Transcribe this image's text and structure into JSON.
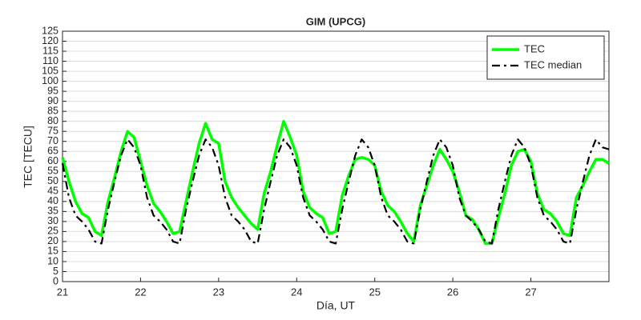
{
  "chart_data": {
    "type": "line",
    "title": "GIM (UPCG)",
    "xlabel": "Día, UT",
    "ylabel": "TEC [TECU]",
    "x": [
      21,
      21.083,
      21.167,
      21.25,
      21.333,
      21.417,
      21.5,
      21.583,
      21.667,
      21.75,
      21.833,
      21.917,
      22,
      22.083,
      22.167,
      22.25,
      22.333,
      22.417,
      22.5,
      22.583,
      22.667,
      22.75,
      22.833,
      22.917,
      23,
      23.083,
      23.167,
      23.25,
      23.333,
      23.417,
      23.5,
      23.583,
      23.667,
      23.75,
      23.833,
      23.917,
      24,
      24.083,
      24.167,
      24.25,
      24.333,
      24.417,
      24.5,
      24.583,
      24.667,
      24.75,
      24.833,
      24.917,
      25,
      25.083,
      25.167,
      25.25,
      25.333,
      25.417,
      25.5,
      25.583,
      25.667,
      25.75,
      25.833,
      25.917,
      26,
      26.083,
      26.167,
      26.25,
      26.333,
      26.417,
      26.5,
      26.583,
      26.667,
      26.75,
      26.833,
      26.917,
      27,
      27.083,
      27.167,
      27.25,
      27.333,
      27.417,
      27.5,
      27.583,
      27.667,
      27.75,
      27.833,
      27.917,
      28
    ],
    "series": [
      {
        "name": "TEC",
        "color": "#00ff00",
        "dash": "solid",
        "values": [
          62,
          50,
          40,
          34,
          32,
          25,
          23,
          40,
          52,
          65,
          75,
          72,
          60,
          48,
          39,
          35,
          30,
          24,
          25,
          40,
          55,
          69,
          79,
          71,
          69,
          50,
          42,
          37,
          33,
          29,
          26,
          44,
          55,
          68,
          80,
          72,
          63,
          45,
          37,
          34,
          32,
          24,
          25,
          43,
          53,
          61,
          62,
          61,
          58,
          45,
          38,
          35,
          30,
          24,
          20,
          38,
          48,
          58,
          66,
          61,
          55,
          45,
          33,
          31,
          26,
          19,
          19,
          32,
          44,
          58,
          65,
          66,
          60,
          44,
          36,
          34,
          30,
          24,
          23,
          42,
          48,
          55,
          61,
          61,
          59
        ]
      },
      {
        "name": "TEC median",
        "color": "#000000",
        "dash": "dashdot",
        "values": [
          59,
          42,
          33,
          30,
          26,
          20,
          19,
          36,
          50,
          63,
          71,
          67,
          58,
          42,
          33,
          30,
          26,
          20,
          19,
          36,
          50,
          63,
          71,
          67,
          58,
          42,
          33,
          30,
          26,
          20,
          19,
          36,
          50,
          63,
          71,
          67,
          58,
          42,
          33,
          30,
          26,
          20,
          19,
          36,
          50,
          63,
          71,
          67,
          58,
          42,
          33,
          30,
          26,
          20,
          19,
          36,
          50,
          63,
          71,
          67,
          58,
          42,
          33,
          30,
          26,
          20,
          19,
          36,
          50,
          63,
          71,
          67,
          58,
          42,
          33,
          30,
          26,
          20,
          19,
          36,
          50,
          63,
          71,
          67,
          66
        ]
      }
    ],
    "xlim": [
      21,
      28
    ],
    "xticks": [
      21,
      22,
      23,
      24,
      25,
      26,
      27
    ],
    "ylim": [
      0,
      125
    ],
    "yticks": [
      0,
      5,
      10,
      15,
      20,
      25,
      30,
      35,
      40,
      45,
      50,
      55,
      60,
      65,
      70,
      75,
      80,
      85,
      90,
      95,
      100,
      105,
      110,
      115,
      120,
      125
    ],
    "grid": true,
    "legend": "northeast"
  }
}
